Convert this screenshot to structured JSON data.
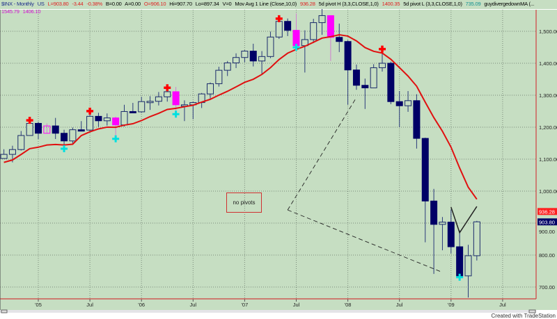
{
  "header": {
    "symbol": "$INX - Monthly",
    "exchange": "US",
    "last": "L=903.80",
    "change": "-3.44",
    "pct": "-0.38%",
    "bid": "B=0.00",
    "ask": "A=0.00",
    "open": "O=906.10",
    "high": "Hi=907.70",
    "low": "Lo=897.34",
    "vol": "V=0",
    "ma_label": "Mov Avg 1 Line (Close,10,0)",
    "ma_value": "936.28",
    "pivh_label": "5d pivot H (3,3,CLOSE,1,0)",
    "pivh_value": "1400.35",
    "pivl_label": "5d pivot L (3,3,CLOSE,1,0)",
    "pivl_value": "735.09",
    "div_label": "guydivergedownMA (...",
    "div_v1": "1545.79",
    "div_v2": "1406.10"
  },
  "colors": {
    "background": "#c6dec2",
    "up_candle": "#1a2a6a",
    "down_candle": "#000066",
    "ma": "#e01010",
    "pivot_high": "#ff0000",
    "pivot_low": "#00e0e0",
    "divergence": "#ff00ff",
    "axis_line": "#d04040"
  },
  "annotation_box": "no pivots",
  "credit": "Created with TradeStation",
  "chart_data": {
    "type": "candlestick",
    "title": "",
    "ylim": [
      660,
      1600
    ],
    "y_ticks": [
      700,
      800,
      900,
      1000,
      1100,
      1200,
      1300,
      1400,
      1500
    ],
    "y_tick_labels": [
      "700.00",
      "800.00",
      "900.00",
      "1,000.00",
      "1,100.00",
      "1,200.00",
      "1,300.00",
      "1,400.00",
      "1,500.00"
    ],
    "x_ticks": [
      {
        "date": "2005-01",
        "label": "'05"
      },
      {
        "date": "2005-07",
        "label": "Jul"
      },
      {
        "date": "2006-01",
        "label": "'06"
      },
      {
        "date": "2006-07",
        "label": "Jul"
      },
      {
        "date": "2007-01",
        "label": "'07"
      },
      {
        "date": "2007-07",
        "label": "Jul"
      },
      {
        "date": "2008-01",
        "label": "'08"
      },
      {
        "date": "2008-07",
        "label": "Jul"
      },
      {
        "date": "2009-01",
        "label": "'09"
      },
      {
        "date": "2009-07",
        "label": "Jul"
      }
    ],
    "grid": true,
    "dates": [
      "2004-09",
      "2004-10",
      "2004-11",
      "2004-12",
      "2005-01",
      "2005-02",
      "2005-03",
      "2005-04",
      "2005-05",
      "2005-06",
      "2005-07",
      "2005-08",
      "2005-09",
      "2005-10",
      "2005-11",
      "2005-12",
      "2006-01",
      "2006-02",
      "2006-03",
      "2006-04",
      "2006-05",
      "2006-06",
      "2006-07",
      "2006-08",
      "2006-09",
      "2006-10",
      "2006-11",
      "2006-12",
      "2007-01",
      "2007-02",
      "2007-03",
      "2007-04",
      "2007-05",
      "2007-06",
      "2007-07",
      "2007-08",
      "2007-09",
      "2007-10",
      "2007-11",
      "2007-12",
      "2008-01",
      "2008-02",
      "2008-03",
      "2008-04",
      "2008-05",
      "2008-06",
      "2008-07",
      "2008-08",
      "2008-09",
      "2008-10",
      "2008-11",
      "2008-12",
      "2009-01",
      "2009-02",
      "2009-03",
      "2009-04"
    ],
    "ohlc": [
      [
        1102,
        1131,
        1101,
        1115
      ],
      [
        1115,
        1142,
        1090,
        1130
      ],
      [
        1130,
        1188,
        1127,
        1174
      ],
      [
        1174,
        1217,
        1173,
        1212
      ],
      [
        1212,
        1217,
        1163,
        1181
      ],
      [
        1181,
        1212,
        1180,
        1204
      ],
      [
        1204,
        1229,
        1163,
        1181
      ],
      [
        1181,
        1192,
        1137,
        1157
      ],
      [
        1157,
        1199,
        1146,
        1192
      ],
      [
        1192,
        1219,
        1188,
        1191
      ],
      [
        1191,
        1246,
        1183,
        1234
      ],
      [
        1234,
        1245,
        1201,
        1220
      ],
      [
        1220,
        1243,
        1205,
        1229
      ],
      [
        1229,
        1233,
        1168,
        1207
      ],
      [
        1207,
        1270,
        1202,
        1249
      ],
      [
        1249,
        1276,
        1246,
        1248
      ],
      [
        1248,
        1295,
        1245,
        1280
      ],
      [
        1280,
        1297,
        1254,
        1281
      ],
      [
        1281,
        1310,
        1268,
        1295
      ],
      [
        1295,
        1319,
        1280,
        1311
      ],
      [
        1311,
        1326,
        1245,
        1270
      ],
      [
        1270,
        1284,
        1219,
        1270
      ],
      [
        1270,
        1280,
        1225,
        1277
      ],
      [
        1277,
        1307,
        1260,
        1304
      ],
      [
        1304,
        1340,
        1290,
        1336
      ],
      [
        1336,
        1389,
        1327,
        1378
      ],
      [
        1378,
        1407,
        1360,
        1401
      ],
      [
        1401,
        1431,
        1385,
        1418
      ],
      [
        1418,
        1441,
        1403,
        1438
      ],
      [
        1438,
        1461,
        1390,
        1407
      ],
      [
        1407,
        1438,
        1364,
        1421
      ],
      [
        1421,
        1499,
        1416,
        1482
      ],
      [
        1482,
        1535,
        1476,
        1531
      ],
      [
        1531,
        1540,
        1485,
        1503
      ],
      [
        1503,
        1556,
        1454,
        1455
      ],
      [
        1455,
        1503,
        1371,
        1474
      ],
      [
        1474,
        1539,
        1463,
        1527
      ],
      [
        1527,
        1576,
        1489,
        1549
      ],
      [
        1549,
        1545,
        1407,
        1481
      ],
      [
        1481,
        1524,
        1435,
        1468
      ],
      [
        1468,
        1472,
        1270,
        1379
      ],
      [
        1379,
        1396,
        1317,
        1331
      ],
      [
        1331,
        1352,
        1257,
        1323
      ],
      [
        1323,
        1397,
        1323,
        1386
      ],
      [
        1386,
        1440,
        1374,
        1400
      ],
      [
        1400,
        1405,
        1272,
        1280
      ],
      [
        1280,
        1313,
        1200,
        1267
      ],
      [
        1267,
        1313,
        1248,
        1283
      ],
      [
        1283,
        1303,
        1133,
        1165
      ],
      [
        1165,
        1167,
        840,
        969
      ],
      [
        969,
        1007,
        741,
        896
      ],
      [
        896,
        919,
        815,
        903
      ],
      [
        903,
        943,
        805,
        826
      ],
      [
        826,
        877,
        735,
        735
      ],
      [
        735,
        832,
        667,
        798
      ],
      [
        798,
        907,
        783,
        904
      ]
    ],
    "moving_average": {
      "label": "Mov Avg 1 Line (Close,10,0)",
      "length": 10,
      "last": 936.28
    },
    "pivot_highs": [
      "2004-12",
      "2005-07",
      "2006-04",
      "2007-05",
      "2007-10",
      "2008-05"
    ],
    "pivot_lows": [
      "2005-04",
      "2005-10",
      "2006-05",
      "2007-07",
      "2009-02"
    ],
    "divergence_bars": [
      "2005-02",
      "2005-10",
      "2006-05",
      "2007-07",
      "2007-11"
    ],
    "trendlines": [
      {
        "style": "dashed",
        "points": [
          [
            "2007-06",
            941
          ],
          [
            "2008-02",
            1293
          ]
        ]
      },
      {
        "style": "dashed",
        "points": [
          [
            "2007-06",
            941
          ],
          [
            "2008-12",
            746
          ]
        ]
      },
      {
        "style": "solid",
        "points": [
          [
            "2009-01",
            950
          ],
          [
            "2009-02",
            870
          ],
          [
            "2009-04",
            952
          ]
        ]
      }
    ],
    "price_markers": [
      {
        "value": "936.28",
        "color": "#ff2020"
      },
      {
        "value": "903.80",
        "color": "#000066"
      }
    ]
  }
}
